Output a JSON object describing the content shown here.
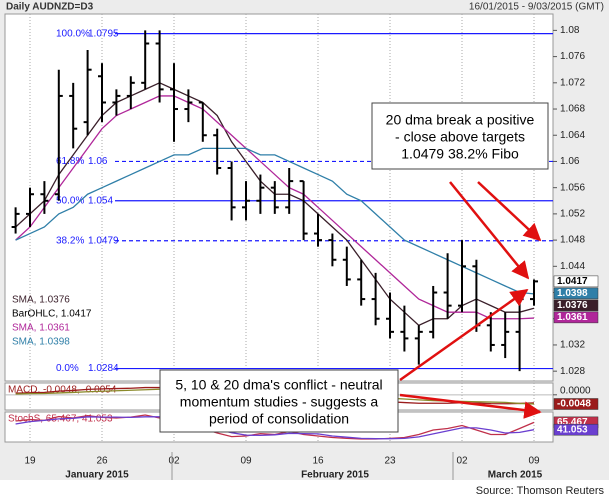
{
  "chart_data": [
    {
      "type": "ohlc",
      "title": "Daily AUDNZD=D3",
      "subtitle": "16/01/2015 - 9/03/2015 (GMT)",
      "categories": [
        null,
        "19",
        null,
        null,
        null,
        null,
        "26",
        null,
        null,
        null,
        null,
        "02",
        null,
        null,
        null,
        null,
        "09",
        null,
        null,
        null,
        null,
        "16",
        null,
        null,
        null,
        null,
        "23",
        null,
        null,
        null,
        null,
        "02",
        null,
        null,
        null,
        null,
        "09"
      ],
      "months": [
        "January 2015",
        "February 2015",
        "March 2015"
      ],
      "ohlc_name": "BarOHLC, 1.0417",
      "color": "#000000",
      "open": [
        1.05,
        1.052,
        1.055,
        1.055,
        1.07,
        1.066,
        1.073,
        1.069,
        1.07,
        1.072,
        1.078,
        1.071,
        1.068,
        1.069,
        1.064,
        1.059,
        1.053,
        1.054,
        1.056,
        1.053,
        1.057,
        1.049,
        1.048,
        1.045,
        1.042,
        1.039,
        1.036,
        1.034,
        1.033,
        1.034,
        1.04,
        1.038,
        1.044,
        1.035,
        1.032,
        1.034,
        1.039
      ],
      "high": [
        1.053,
        1.056,
        1.057,
        1.074,
        1.072,
        1.077,
        1.075,
        1.071,
        1.073,
        1.08,
        1.08,
        1.075,
        1.071,
        1.069,
        1.065,
        1.06,
        1.057,
        1.058,
        1.057,
        1.059,
        1.057,
        1.052,
        1.049,
        1.047,
        1.045,
        1.043,
        1.04,
        1.038,
        1.035,
        1.041,
        1.046,
        1.048,
        1.045,
        1.037,
        1.037,
        1.04,
        1.042
      ],
      "low": [
        1.049,
        1.05,
        1.052,
        1.054,
        1.062,
        1.064,
        1.066,
        1.067,
        1.068,
        1.071,
        1.069,
        1.063,
        1.066,
        1.063,
        1.058,
        1.051,
        1.051,
        1.052,
        1.052,
        1.052,
        1.048,
        1.047,
        1.044,
        1.041,
        1.038,
        1.035,
        1.033,
        1.031,
        1.029,
        1.033,
        1.036,
        1.037,
        1.034,
        1.031,
        1.03,
        1.028,
        1.038
      ],
      "close": [
        1.052,
        1.055,
        1.054,
        1.07,
        1.065,
        1.074,
        1.069,
        1.07,
        1.072,
        1.078,
        1.071,
        1.068,
        1.069,
        1.064,
        1.059,
        1.053,
        1.054,
        1.056,
        1.053,
        1.057,
        1.049,
        1.048,
        1.045,
        1.042,
        1.039,
        1.036,
        1.034,
        1.033,
        1.034,
        1.04,
        1.038,
        1.044,
        1.035,
        1.032,
        1.034,
        1.039,
        1.0417
      ],
      "series": [
        {
          "name": "SMA, 1.0376",
          "color": "#3a1f2a",
          "values": [
            1.05,
            1.052,
            1.054,
            1.058,
            1.061,
            1.064,
            1.067,
            1.069,
            1.07,
            1.071,
            1.072,
            1.071,
            1.07,
            1.069,
            1.067,
            1.063,
            1.06,
            1.057,
            1.055,
            1.055,
            1.054,
            1.052,
            1.05,
            1.048,
            1.045,
            1.042,
            1.039,
            1.037,
            1.035,
            1.036,
            1.036,
            1.038,
            1.039,
            1.038,
            1.037,
            1.037,
            1.0376
          ]
        },
        {
          "name": "SMA, 1.0361",
          "color": "#b0279a",
          "values": [
            1.048,
            1.05,
            1.053,
            1.056,
            1.059,
            1.062,
            1.065,
            1.067,
            1.068,
            1.069,
            1.07,
            1.07,
            1.069,
            1.068,
            1.066,
            1.064,
            1.062,
            1.06,
            1.058,
            1.056,
            1.055,
            1.053,
            1.051,
            1.049,
            1.047,
            1.045,
            1.043,
            1.041,
            1.039,
            1.038,
            1.037,
            1.037,
            1.037,
            1.036,
            1.036,
            1.036,
            1.0361
          ]
        },
        {
          "name": "SMA, 1.0398",
          "color": "#2f7fa8",
          "values": [
            1.048,
            1.049,
            1.05,
            1.052,
            1.053,
            1.055,
            1.056,
            1.057,
            1.058,
            1.059,
            1.06,
            1.061,
            1.061,
            1.062,
            1.062,
            1.062,
            1.062,
            1.061,
            1.061,
            1.06,
            1.059,
            1.058,
            1.057,
            1.055,
            1.054,
            1.052,
            1.05,
            1.048,
            1.047,
            1.046,
            1.045,
            1.044,
            1.043,
            1.042,
            1.041,
            1.04,
            1.0398
          ]
        }
      ],
      "ylim": [
        1.0265,
        1.0825
      ],
      "yticks": [
        1.028,
        1.032,
        1.036,
        1.04,
        1.044,
        1.048,
        1.052,
        1.056,
        1.06,
        1.064,
        1.068,
        1.072,
        1.076,
        1.08
      ],
      "fibonacci": [
        {
          "label": "100.0%",
          "value": 1.0795,
          "style": "solid"
        },
        {
          "label": "61.8%",
          "value": 1.06,
          "style": "dashed"
        },
        {
          "label": "50.0%",
          "value": 1.054,
          "style": "solid"
        },
        {
          "label": "38.2%",
          "value": 1.0479,
          "style": "dashed"
        },
        {
          "label": "0.0%",
          "value": 1.0284,
          "style": "solid"
        }
      ],
      "annotations": [
        [
          "20 dma break a positive",
          "- close above targets",
          "1.0479 38.2% Fibo"
        ],
        [
          "5, 10 & 20 dma's conflict - neutral",
          "momentum studies - suggests a",
          "period of consolidation"
        ]
      ],
      "source": "Source: Thomson Reuters"
    },
    {
      "type": "line",
      "title": "MACD, -0.0048, -0.0054",
      "series": [
        {
          "color": "#9b1c1c",
          "values": [
            0.001,
            0.0012,
            0.0014,
            0.0022,
            0.0026,
            0.0032,
            0.0035,
            0.0037,
            0.0039,
            0.0043,
            0.0043,
            0.004,
            0.0037,
            0.0032,
            0.0025,
            0.0016,
            0.001,
            0.0006,
            0.0002,
            0.0,
            -0.0006,
            -0.0011,
            -0.0017,
            -0.0023,
            -0.0029,
            -0.0035,
            -0.0041,
            -0.0046,
            -0.005,
            -0.005,
            -0.005,
            -0.0047,
            -0.0049,
            -0.0052,
            -0.0053,
            -0.0051,
            -0.0048
          ]
        },
        {
          "color": "#8a8a2a",
          "values": [
            0.0005,
            0.0007,
            0.0008,
            0.0011,
            0.0014,
            0.0018,
            0.0021,
            0.0024,
            0.0027,
            0.003,
            0.0033,
            0.0034,
            0.0035,
            0.0034,
            0.0032,
            0.0029,
            0.0025,
            0.0021,
            0.0017,
            0.0014,
            0.001,
            0.0006,
            0.0001,
            -0.0004,
            -0.0009,
            -0.0014,
            -0.002,
            -0.0025,
            -0.003,
            -0.0034,
            -0.0037,
            -0.0039,
            -0.0041,
            -0.0043,
            -0.0045,
            -0.0051,
            -0.0054
          ]
        }
      ],
      "ylim": [
        -0.009,
        0.007
      ],
      "yticks": [
        {
          "value": 0,
          "label": "0.0000"
        }
      ]
    },
    {
      "type": "line",
      "title": "StochS, 65.467, 41.053",
      "series": [
        {
          "color": "#c0304a",
          "values": [
            70,
            75,
            72,
            85,
            80,
            88,
            82,
            80,
            83,
            90,
            80,
            65,
            55,
            45,
            30,
            18,
            20,
            28,
            25,
            35,
            25,
            20,
            15,
            12,
            10,
            10,
            12,
            15,
            25,
            40,
            45,
            55,
            40,
            25,
            25,
            45,
            65.467
          ]
        },
        {
          "color": "#6a3fd0",
          "values": [
            60,
            68,
            72,
            77,
            79,
            84,
            83,
            83,
            82,
            84,
            84,
            78,
            67,
            55,
            43,
            31,
            23,
            22,
            24,
            29,
            28,
            27,
            20,
            16,
            12,
            11,
            11,
            12,
            17,
            27,
            37,
            47,
            47,
            40,
            30,
            32,
            41.053
          ]
        }
      ],
      "ylim": [
        0,
        100
      ],
      "yticks": []
    }
  ]
}
